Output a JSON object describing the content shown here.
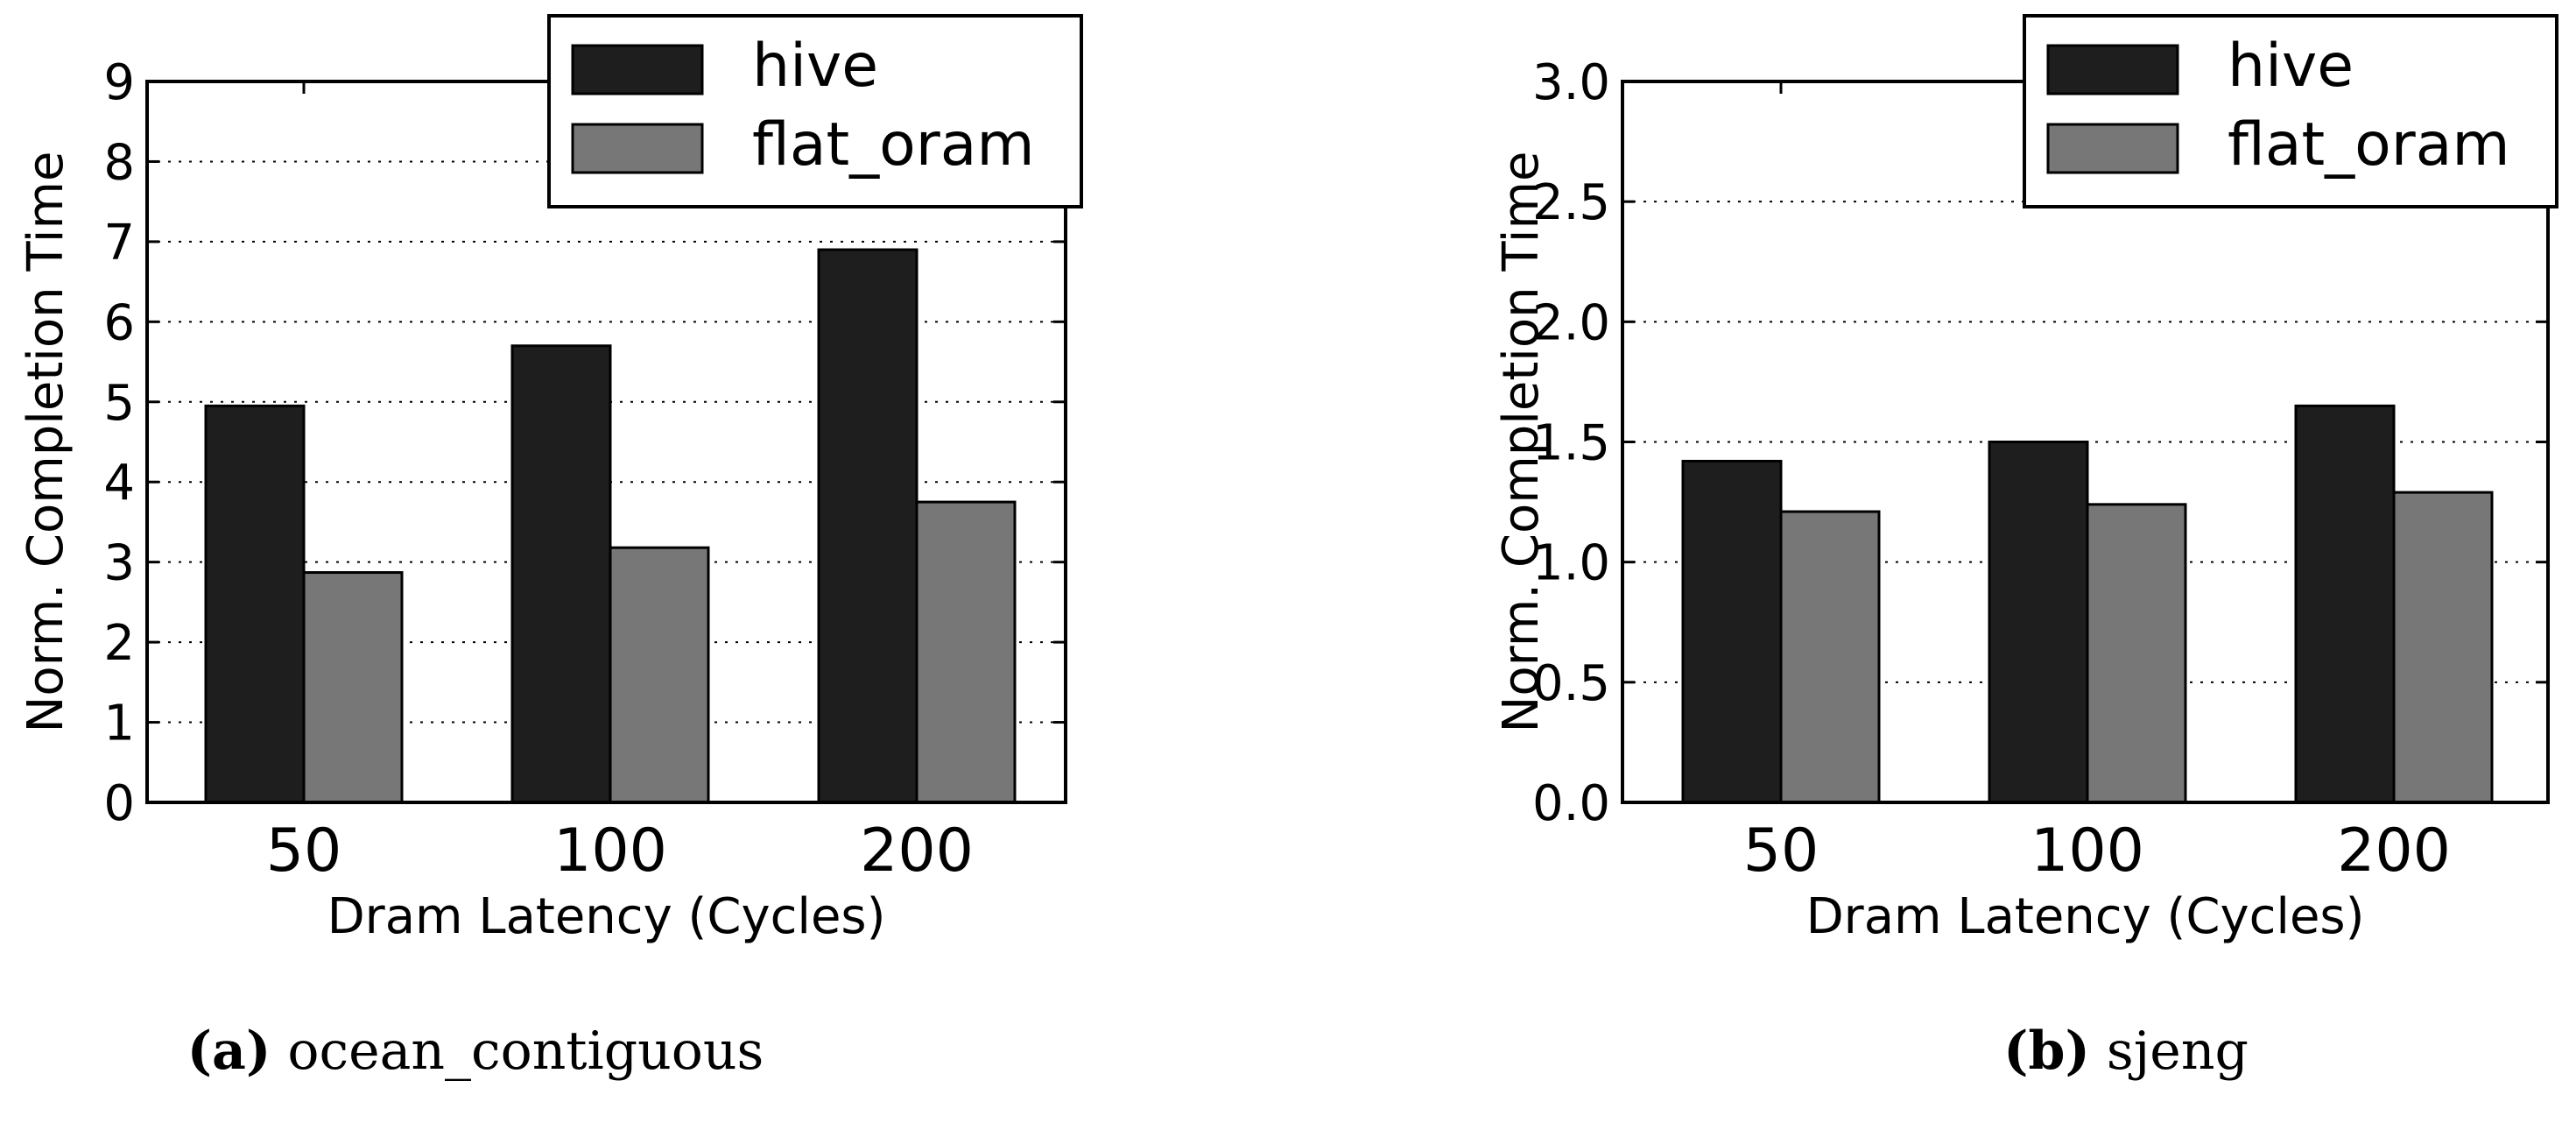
{
  "colors": {
    "hive": "#1e1e1e",
    "flat_oram": "#777777",
    "axis": "#000000",
    "grid": "#000000",
    "background": "#ffffff"
  },
  "chart_data": [
    {
      "type": "bar",
      "id": "a",
      "title": "",
      "xlabel": "Dram Latency (Cycles)",
      "ylabel": "Norm. Completion Time",
      "categories": [
        "50",
        "100",
        "200"
      ],
      "ylim": [
        0,
        9
      ],
      "yticks": [
        "0",
        "1",
        "2",
        "3",
        "4",
        "5",
        "6",
        "7",
        "8",
        "9"
      ],
      "grid": "horizontal-dotted",
      "legend_position": "top-right",
      "series": [
        {
          "name": "hive",
          "values": [
            4.95,
            5.7,
            6.9
          ]
        },
        {
          "name": "flat_oram",
          "values": [
            2.87,
            3.18,
            3.75
          ]
        }
      ]
    },
    {
      "type": "bar",
      "id": "b",
      "title": "",
      "xlabel": "Dram Latency (Cycles)",
      "ylabel": "Norm. Completion Time",
      "categories": [
        "50",
        "100",
        "200"
      ],
      "ylim": [
        0,
        3
      ],
      "yticks": [
        "0.0",
        "0.5",
        "1.0",
        "1.5",
        "2.0",
        "2.5",
        "3.0"
      ],
      "grid": "horizontal-dotted",
      "legend_position": "top-right",
      "series": [
        {
          "name": "hive",
          "values": [
            1.42,
            1.5,
            1.65
          ]
        },
        {
          "name": "flat_oram",
          "values": [
            1.21,
            1.24,
            1.29
          ]
        }
      ]
    }
  ],
  "captions": [
    {
      "letter": "(a)",
      "text": " ocean_contiguous"
    },
    {
      "letter": "(b)",
      "text": " sjeng"
    }
  ]
}
